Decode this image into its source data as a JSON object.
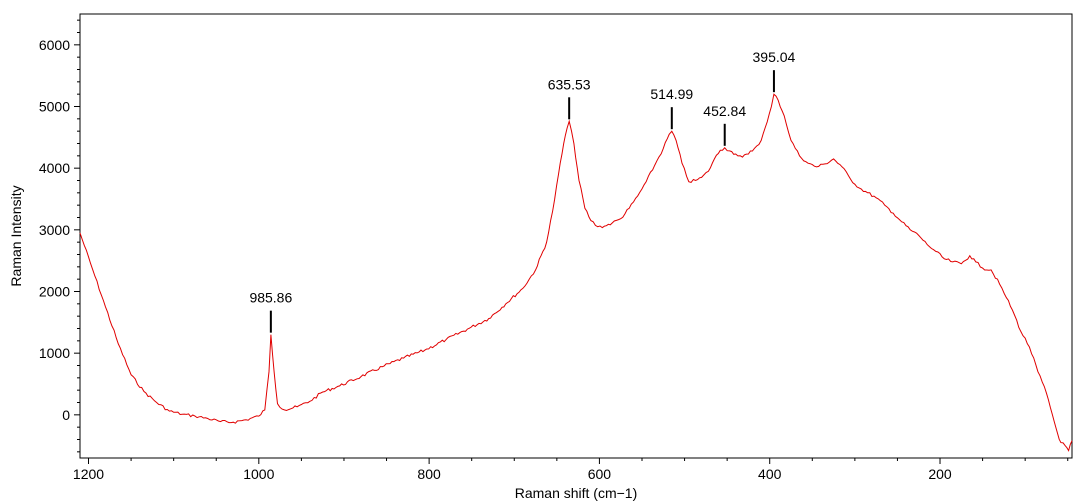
{
  "chart_data": {
    "type": "line",
    "title": "",
    "xlabel": "Raman shift (cm−1)",
    "ylabel": "Raman Intensity",
    "xlim": [
      1210,
      45
    ],
    "ylim": [
      -700,
      6500
    ],
    "x_reversed": true,
    "grid": false,
    "legend": "none",
    "line_color": "#e00000",
    "xticks": [
      1200,
      1000,
      800,
      600,
      400,
      200
    ],
    "xtick_labels": [
      "1200",
      "1000",
      "800",
      "600",
      "400",
      "200"
    ],
    "yticks": [
      0,
      1000,
      2000,
      3000,
      4000,
      5000,
      6000
    ],
    "ytick_labels": [
      "0",
      "1000",
      "2000",
      "3000",
      "4000",
      "5000",
      "6000"
    ],
    "series": [
      {
        "x": [
          1210,
          1195,
          1180,
          1165,
          1150,
          1135,
          1120,
          1105,
          1090,
          1075,
          1060,
          1045,
          1030,
          1015,
          1000,
          993,
          988,
          985.86,
          982,
          978,
          970,
          955,
          940,
          925,
          905,
          880,
          855,
          830,
          805,
          780,
          755,
          730,
          710,
          690,
          675,
          662,
          655,
          648,
          642,
          638,
          635.53,
          630,
          624,
          617,
          610,
          602,
          594,
          585,
          575,
          565,
          555,
          545,
          535,
          525,
          518,
          514.99,
          510,
          503,
          495,
          487,
          480,
          472,
          465,
          458,
          452.84,
          447,
          440,
          432,
          425,
          418,
          410,
          403,
          398,
          395.04,
          390,
          383,
          375,
          365,
          355,
          345,
          335,
          325,
          315,
          305,
          295,
          285,
          275,
          265,
          255,
          245,
          235,
          225,
          215,
          205,
          195,
          185,
          175,
          165,
          158,
          150,
          140,
          130,
          122,
          115,
          105,
          95,
          85,
          75,
          68,
          62,
          58,
          53,
          49,
          45
        ],
        "y": [
          2950,
          2350,
          1750,
          1150,
          650,
          380,
          200,
          60,
          10,
          -20,
          -60,
          -110,
          -120,
          -80,
          -20,
          80,
          700,
          1300,
          700,
          180,
          80,
          130,
          220,
          370,
          470,
          620,
          780,
          920,
          1050,
          1220,
          1390,
          1560,
          1800,
          2050,
          2350,
          2800,
          3300,
          3900,
          4400,
          4650,
          4760,
          4400,
          3800,
          3350,
          3150,
          3050,
          3060,
          3110,
          3180,
          3350,
          3550,
          3780,
          4050,
          4320,
          4550,
          4600,
          4450,
          4080,
          3780,
          3800,
          3850,
          3950,
          4150,
          4290,
          4330,
          4280,
          4230,
          4180,
          4230,
          4320,
          4450,
          4750,
          5000,
          5200,
          5100,
          4850,
          4450,
          4200,
          4080,
          4020,
          4070,
          4150,
          4020,
          3820,
          3680,
          3600,
          3520,
          3400,
          3270,
          3130,
          3000,
          2910,
          2760,
          2650,
          2530,
          2480,
          2450,
          2580,
          2480,
          2380,
          2350,
          2120,
          1900,
          1700,
          1350,
          1100,
          700,
          350,
          0,
          -300,
          -450,
          -500,
          -580,
          -420
        ]
      }
    ],
    "annotations": [
      {
        "x": 985.86,
        "y": 1300,
        "text": "985.86"
      },
      {
        "x": 635.53,
        "y": 4760,
        "text": "635.53"
      },
      {
        "x": 514.99,
        "y": 4600,
        "text": "514.99"
      },
      {
        "x": 452.84,
        "y": 4330,
        "text": "452.84"
      },
      {
        "x": 395.04,
        "y": 5200,
        "text": "395.04"
      }
    ]
  }
}
